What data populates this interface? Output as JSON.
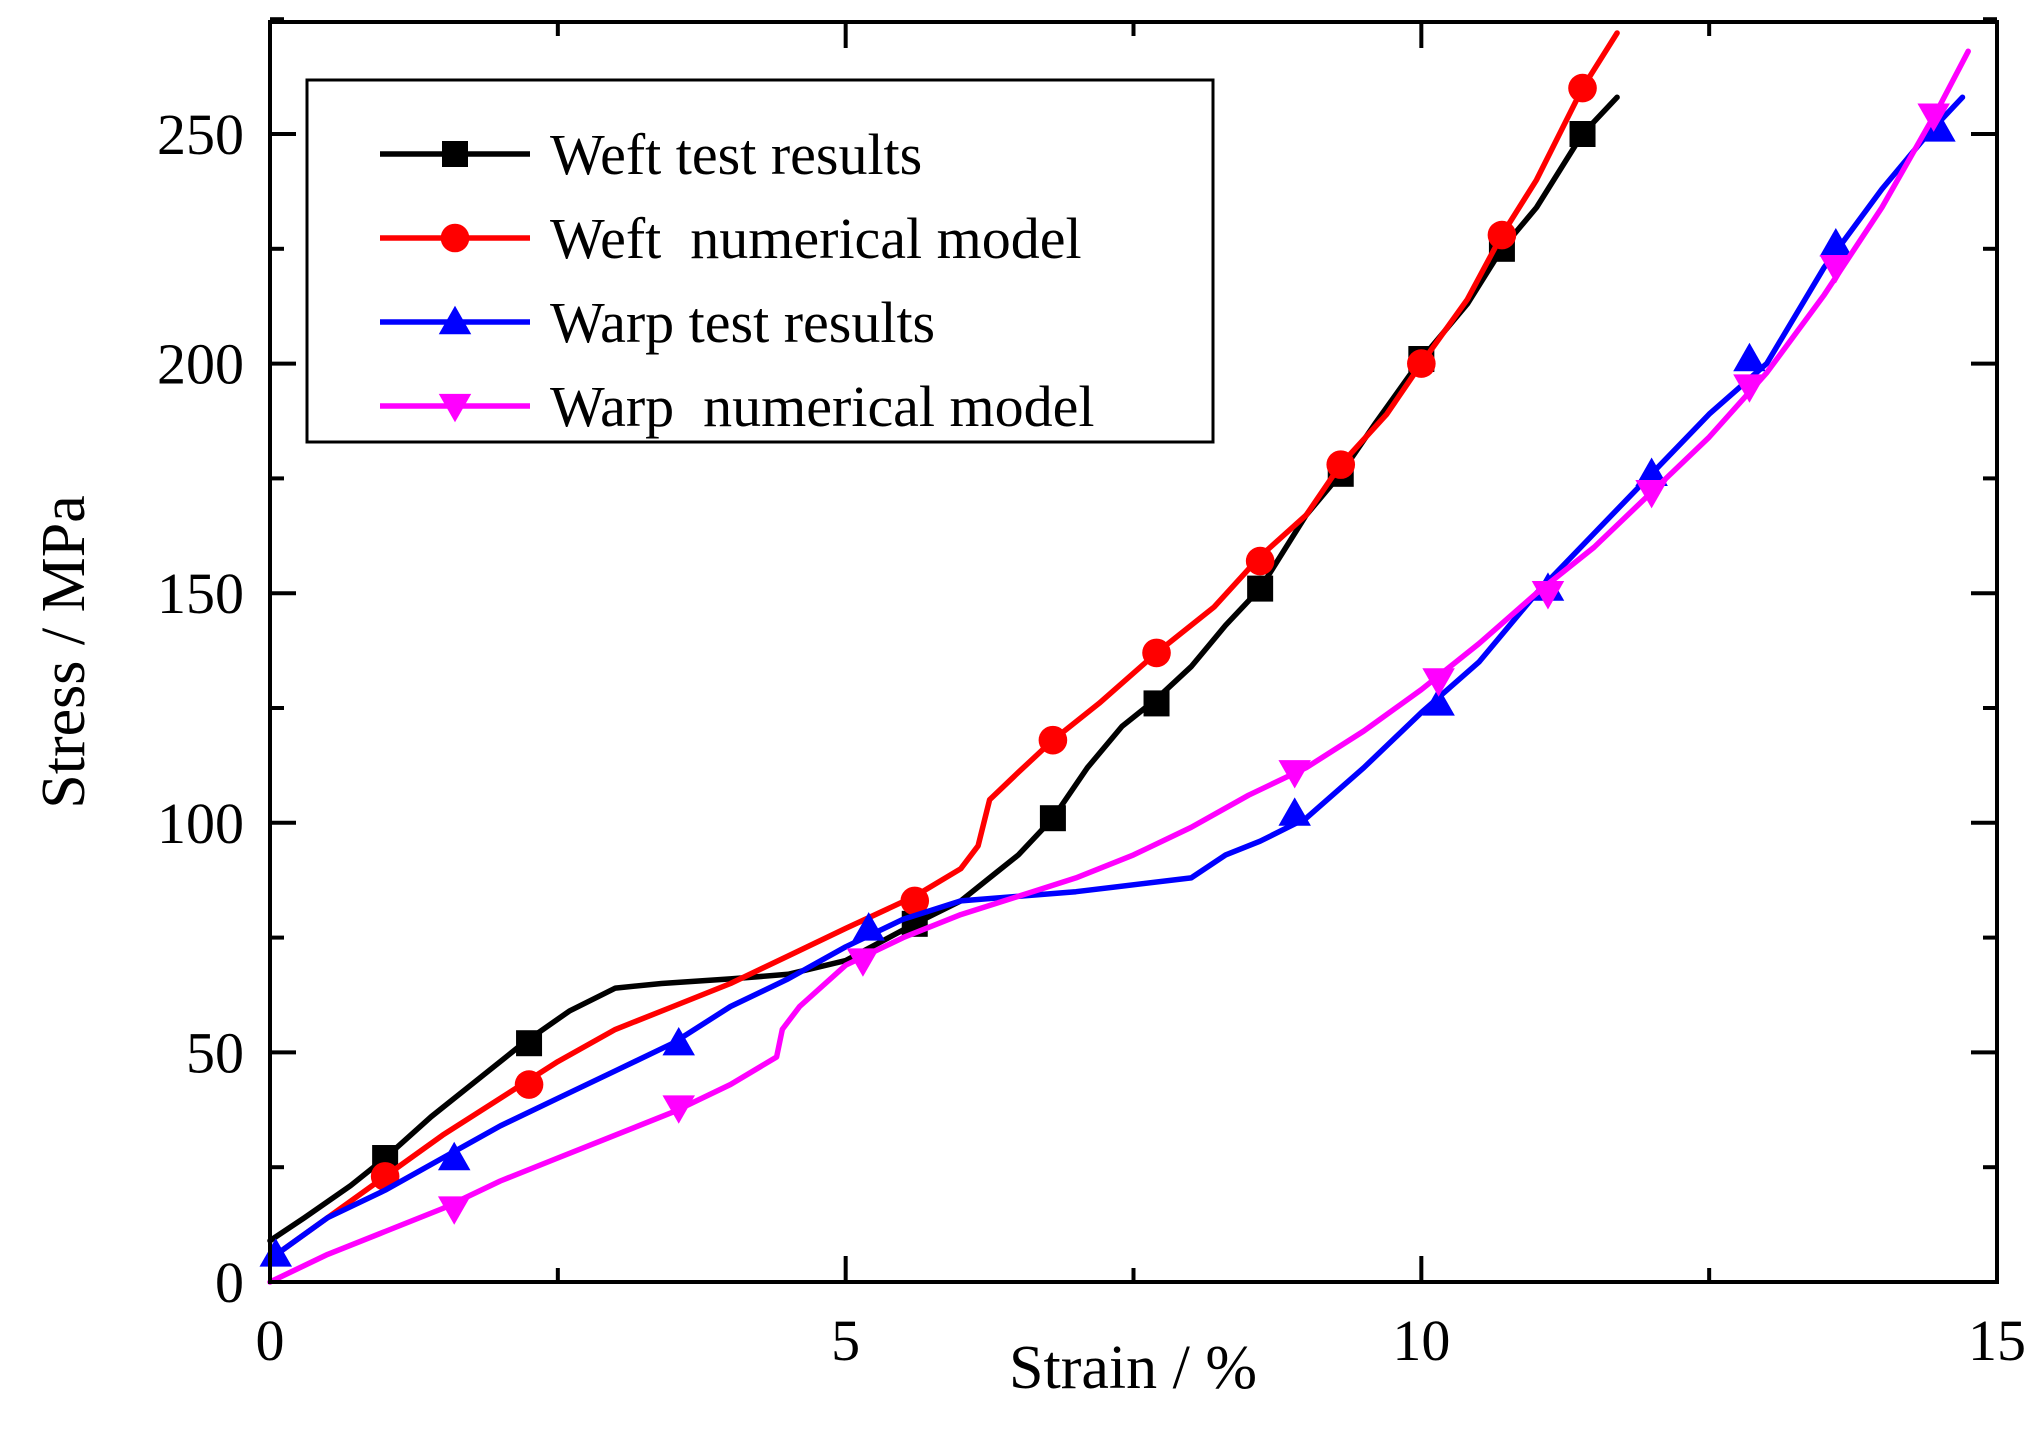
{
  "chart_data": {
    "type": "line",
    "title": "",
    "xlabel": "Strain / %",
    "ylabel": "Stress / MPa",
    "xlim": [
      0,
      15
    ],
    "ylim": [
      0,
      275
    ],
    "xticks": [
      0,
      5,
      10,
      15
    ],
    "yticks": [
      0,
      50,
      100,
      150,
      200,
      250
    ],
    "legend_position": "top-left",
    "series": [
      {
        "name": "Weft test results",
        "color": "#000000",
        "marker": "square",
        "x": [
          0,
          0.3,
          0.7,
          1.0,
          1.4,
          1.8,
          2.2,
          2.6,
          3.0,
          3.4,
          4.0,
          4.5,
          5.0,
          5.3,
          5.6,
          6.0,
          6.3,
          6.5,
          6.8,
          7.1,
          7.4,
          7.7,
          8.0,
          8.3,
          8.6,
          9.0,
          9.3,
          9.6,
          10.0,
          10.4,
          10.7,
          11.0,
          11.4,
          11.7
        ],
        "y": [
          9,
          14,
          21,
          27,
          36,
          44,
          52,
          59,
          64,
          65,
          66,
          67,
          70,
          74,
          78,
          83,
          89,
          93,
          101,
          112,
          121,
          127,
          134,
          143,
          151,
          167,
          176,
          187,
          201,
          213,
          225,
          234,
          250,
          258
        ],
        "markers_x": [
          1.0,
          2.25,
          5.6,
          6.8,
          7.7,
          8.6,
          9.3,
          10.0,
          10.7,
          11.4
        ],
        "markers_y": [
          27,
          52,
          78,
          101,
          126,
          151,
          176,
          201,
          225,
          250
        ]
      },
      {
        "name": "Weft  numerical model",
        "color": "#ff0000",
        "marker": "circle",
        "x": [
          0,
          0.5,
          1.0,
          1.5,
          2.0,
          2.5,
          3.0,
          3.5,
          4.0,
          4.5,
          5.0,
          5.6,
          6.0,
          6.15,
          6.25,
          6.5,
          6.8,
          7.2,
          7.7,
          8.2,
          8.6,
          9.0,
          9.3,
          9.7,
          10.0,
          10.4,
          10.7,
          11.0,
          11.4,
          11.7
        ],
        "y": [
          5,
          14,
          23,
          32,
          40,
          48,
          55,
          60,
          65,
          71,
          77,
          84,
          90,
          95,
          105,
          111,
          118,
          126,
          137,
          147,
          158,
          167,
          178,
          189,
          200,
          214,
          228,
          240,
          260,
          272
        ],
        "markers_x": [
          1.0,
          2.25,
          5.6,
          6.8,
          7.7,
          8.6,
          9.3,
          10.0,
          10.7,
          11.4
        ],
        "markers_y": [
          23,
          43,
          83,
          118,
          137,
          157,
          178,
          200,
          228,
          260
        ]
      },
      {
        "name": "Warp test results",
        "color": "#0000ff",
        "marker": "triangle-up",
        "x": [
          0,
          0.5,
          1.0,
          1.5,
          2.0,
          2.5,
          3.0,
          3.5,
          4.0,
          4.5,
          5.0,
          5.5,
          6.0,
          7.0,
          8.0,
          8.3,
          8.6,
          9.0,
          9.5,
          10.0,
          10.5,
          11.0,
          11.5,
          12.0,
          12.5,
          13.0,
          13.5,
          14.0,
          14.4,
          14.7
        ],
        "y": [
          5,
          14,
          20,
          27,
          34,
          40,
          46,
          52,
          60,
          66,
          73,
          79,
          83,
          85,
          88,
          93,
          96,
          101,
          112,
          124,
          135,
          150,
          163,
          176,
          189,
          200,
          221,
          238,
          250,
          258
        ],
        "markers_x": [
          0.05,
          1.6,
          3.55,
          5.2,
          8.9,
          10.15,
          11.1,
          12.0,
          12.85,
          13.6,
          14.5
        ],
        "markers_y": [
          6,
          27,
          52,
          77,
          102,
          126,
          151,
          176,
          201,
          226,
          251
        ]
      },
      {
        "name": "Warp  numerical model",
        "color": "#ff00ff",
        "marker": "triangle-down",
        "x": [
          0,
          0.5,
          1.0,
          1.5,
          2.0,
          2.5,
          3.0,
          3.5,
          4.0,
          4.4,
          4.45,
          4.6,
          5.0,
          5.5,
          6.0,
          6.5,
          7.0,
          7.5,
          8.0,
          8.5,
          9.0,
          9.5,
          10.0,
          10.5,
          11.0,
          11.5,
          12.0,
          12.5,
          13.0,
          13.5,
          14.0,
          14.5,
          14.75
        ],
        "y": [
          0,
          6,
          11,
          16,
          22,
          27,
          32,
          37,
          43,
          49,
          55,
          60,
          69,
          75,
          80,
          84,
          88,
          93,
          99,
          106,
          112,
          120,
          129,
          139,
          150,
          160,
          172,
          184,
          198,
          215,
          234,
          256,
          268
        ],
        "markers_x": [
          1.6,
          3.55,
          5.15,
          8.9,
          10.15,
          11.1,
          12.0,
          12.85,
          13.6,
          14.45
        ],
        "markers_y": [
          16,
          38,
          70,
          111,
          131,
          150,
          172,
          195,
          221,
          254
        ]
      }
    ]
  }
}
